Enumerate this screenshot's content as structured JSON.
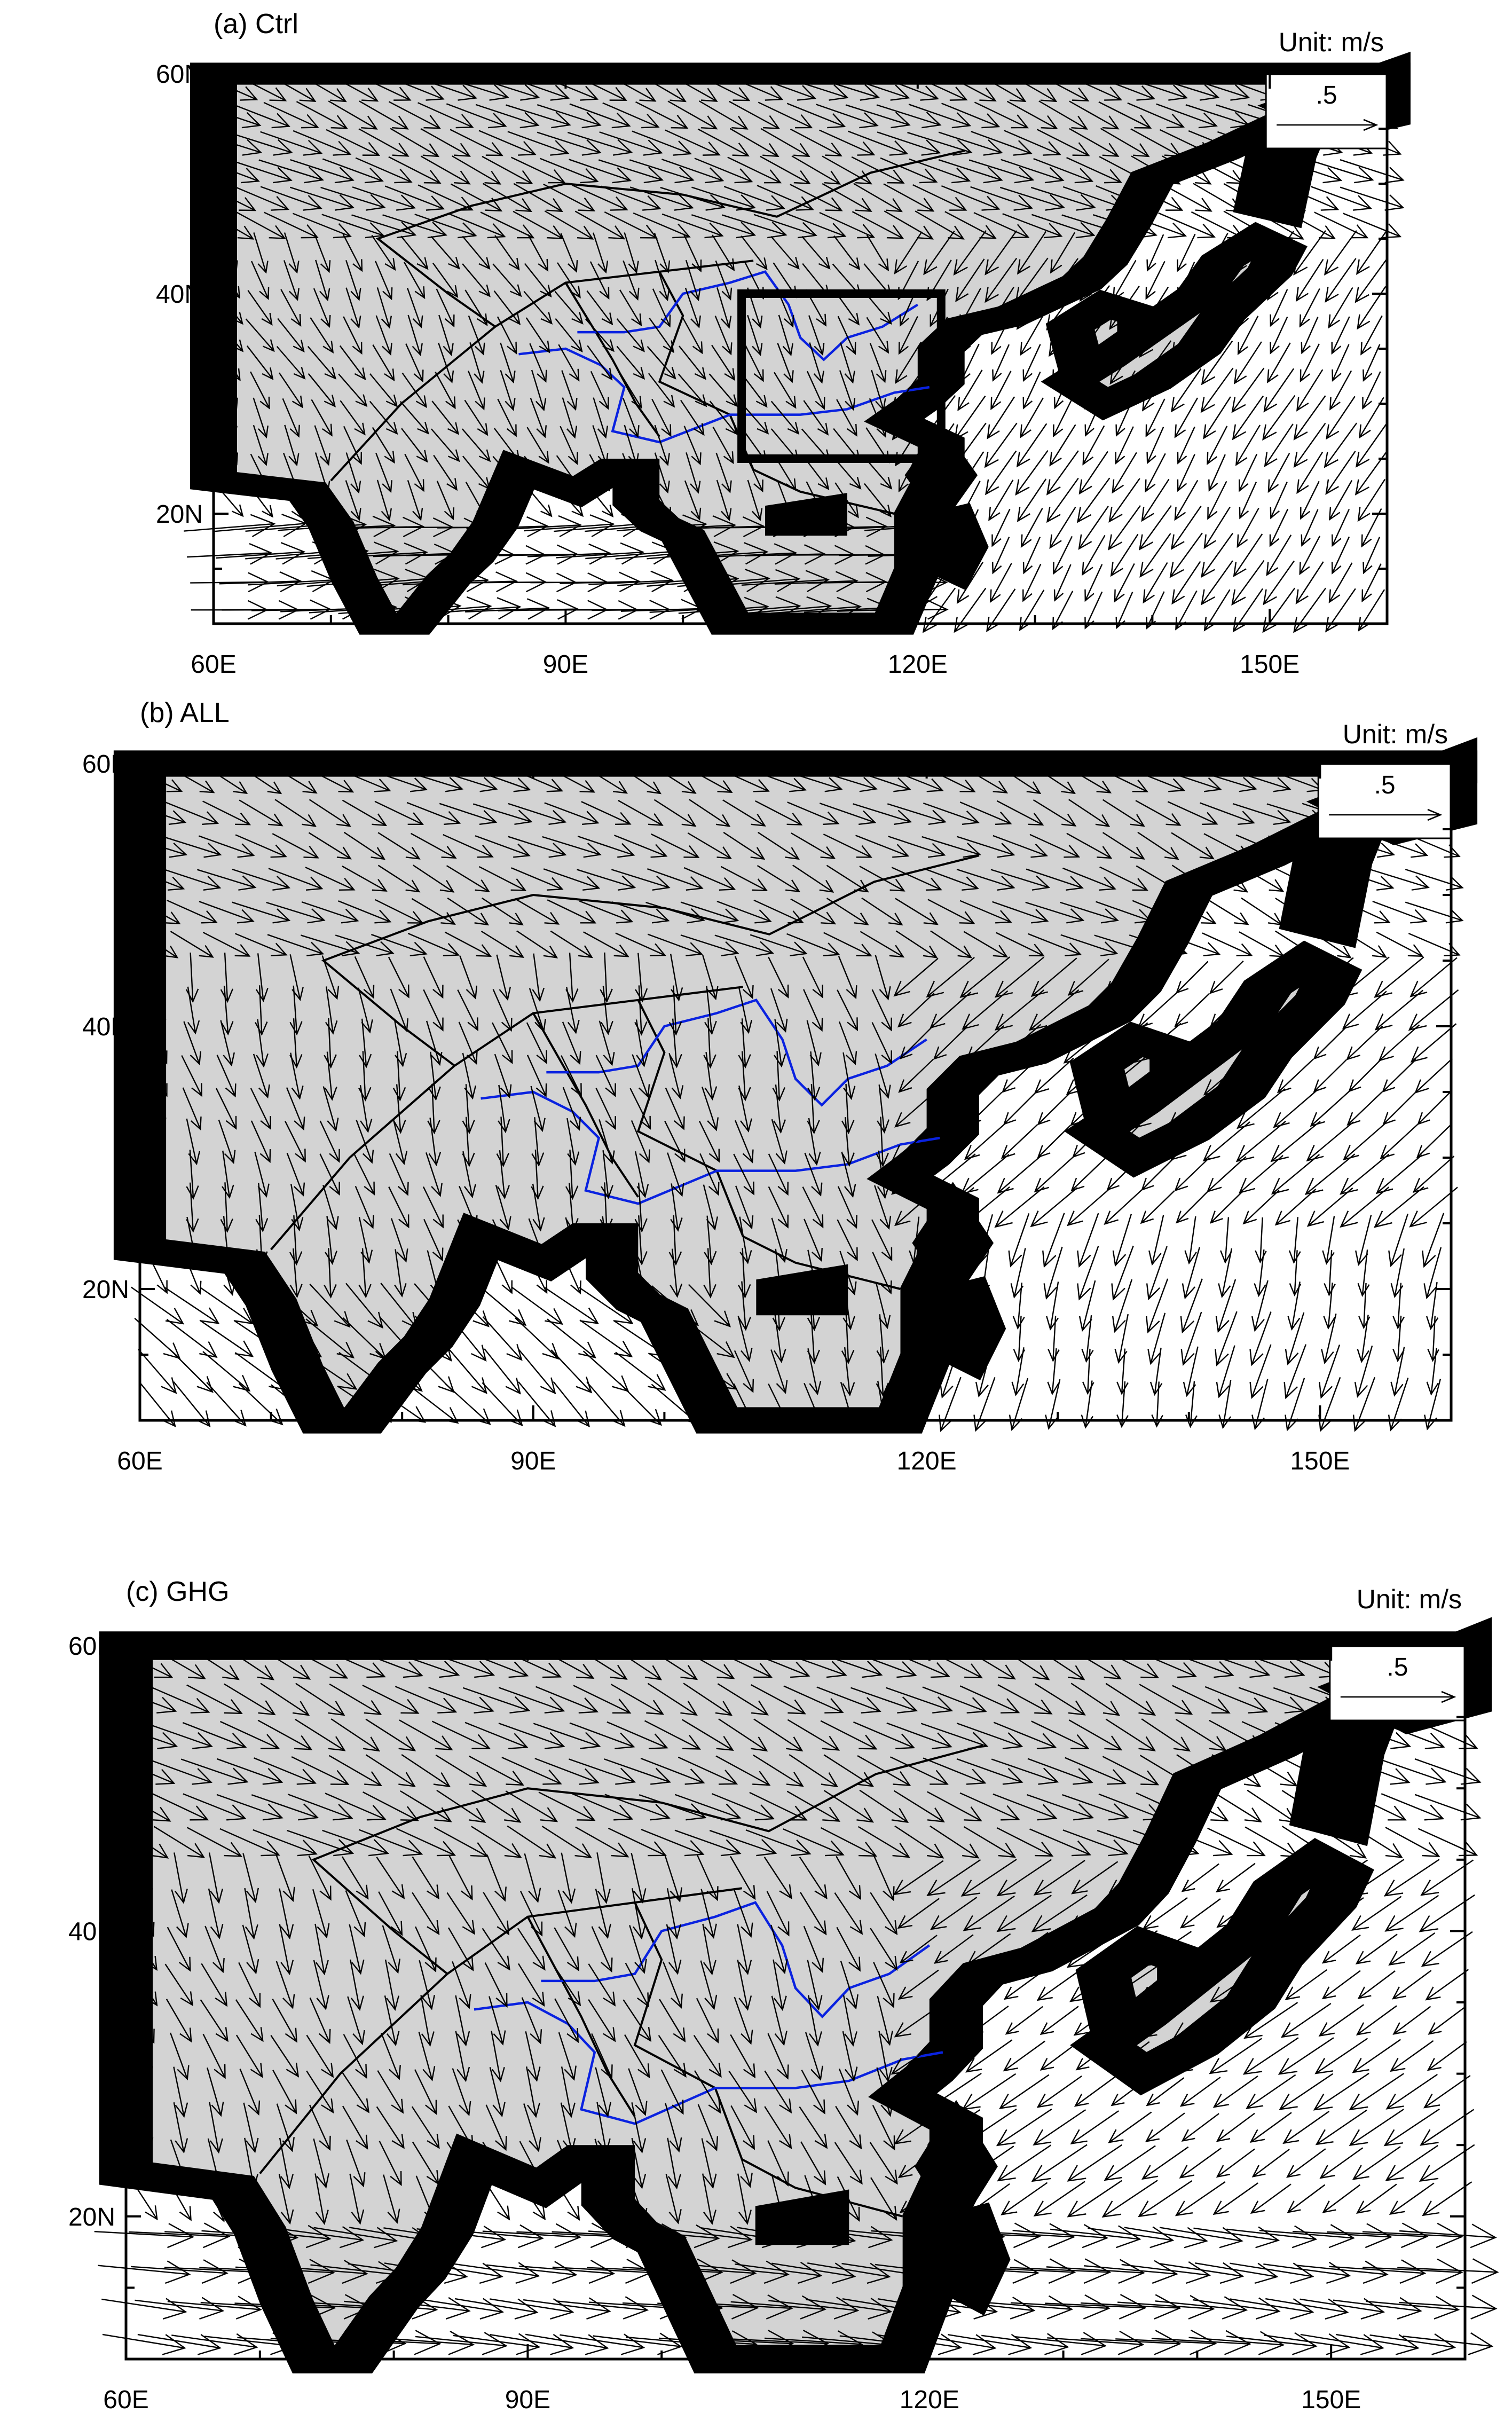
{
  "colors": {
    "land": "#d3d3d3",
    "ocean": "#ffffff",
    "coastline": "#000000",
    "river": "#0a22e0",
    "vector": "#000000",
    "study_box": "#000000"
  },
  "map": {
    "lon_range": [
      60,
      160
    ],
    "lat_range": [
      10,
      60
    ],
    "lon_ticks": [
      "60E",
      "90E",
      "120E",
      "150E"
    ],
    "lat_ticks": [
      "20N",
      "40N",
      "60N"
    ],
    "layers": [
      "land-shading",
      "national-borders",
      "coastlines",
      "yellow-river",
      "yangtze-river",
      "wind-vectors"
    ]
  },
  "panels": [
    {
      "id": "ctrl",
      "title": "(a) Ctrl",
      "unit": "Unit: m/s",
      "ref_vector_label": ".5",
      "ref_vector_magnitude": 0.5,
      "study_box": {
        "lon": [
          105,
          122
        ],
        "lat": [
          25,
          40
        ]
      },
      "wind_regime": "ctrl"
    },
    {
      "id": "all",
      "title": "(b) ALL",
      "unit": "Unit: m/s",
      "ref_vector_label": ".5",
      "ref_vector_magnitude": 0.5,
      "study_box": null,
      "wind_regime": "all"
    },
    {
      "id": "ghg",
      "title": "(c) GHG",
      "unit": "Unit: m/s",
      "ref_vector_label": ".5",
      "ref_vector_magnitude": 0.5,
      "study_box": null,
      "wind_regime": "ghg"
    }
  ]
}
